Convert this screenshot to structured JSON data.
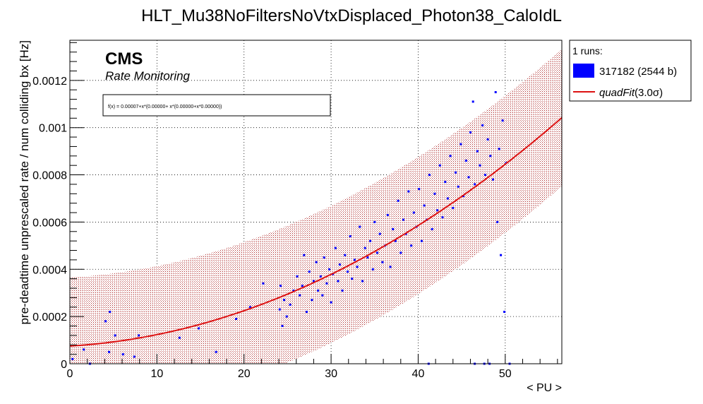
{
  "chart_data": {
    "type": "scatter",
    "title": "HLT_Mu38NoFiltersNoVtxDisplaced_Photon38_CaloIdL",
    "xlabel": "< PU >",
    "ylabel": "pre-deadtime unprescaled rate / num colliding bx [Hz]",
    "xlim": [
      0,
      56.5
    ],
    "ylim": [
      0,
      0.00137
    ],
    "x_ticks": [
      "0",
      "10",
      "20",
      "30",
      "40",
      "50"
    ],
    "y_ticks": [
      "0",
      "0.0002",
      "0.0004",
      "0.0006",
      "0.0008",
      "0.001",
      "0.0012"
    ],
    "grid": true,
    "cms_label": "CMS",
    "cms_sublabel": "Rate Monitoring",
    "fit_formula": "f(x) = 0.00007+x*(0.00000+ x*(0.00000+x*0.00000))",
    "legend": {
      "header": "1 runs:",
      "run_label": "317182 (2544 b)",
      "fit_label": "quadFit",
      "fit_sigma": "(3.0σ)",
      "placement": "right"
    },
    "fit": {
      "a": 7.5e-05,
      "b": 2.2e-06,
      "c": 2.64e-07,
      "band_halfwidth": 0.00029
    },
    "series": [
      {
        "name": "317182 (2544 b)",
        "color": "#0000ff",
        "points": [
          [
            0.3,
            2e-05
          ],
          [
            1.6,
            6e-05
          ],
          [
            2.3,
            0.0
          ],
          [
            4.1,
            0.00018
          ],
          [
            4.6,
            0.00022
          ],
          [
            4.5,
            5e-05
          ],
          [
            5.2,
            0.00012
          ],
          [
            6.1,
            4e-05
          ],
          [
            7.4,
            3e-05
          ],
          [
            7.9,
            0.00012
          ],
          [
            12.6,
            0.00011
          ],
          [
            14.8,
            0.00015
          ],
          [
            16.8,
            5e-05
          ],
          [
            19.1,
            0.00019
          ],
          [
            20.7,
            0.00024
          ],
          [
            22.2,
            0.00034
          ],
          [
            24.1,
            0.00023
          ],
          [
            24.2,
            0.00033
          ],
          [
            24.4,
            0.00016
          ],
          [
            24.6,
            0.00027
          ],
          [
            24.9,
            0.0002
          ],
          [
            25.3,
            0.00025
          ],
          [
            25.7,
            0.00031
          ],
          [
            26.1,
            0.00037
          ],
          [
            26.4,
            0.00029
          ],
          [
            26.7,
            0.00033
          ],
          [
            26.9,
            0.00046
          ],
          [
            27.2,
            0.00022
          ],
          [
            27.5,
            0.00039
          ],
          [
            27.8,
            0.00027
          ],
          [
            28.0,
            0.00035
          ],
          [
            28.3,
            0.00043
          ],
          [
            28.5,
            0.00031
          ],
          [
            28.8,
            0.00037
          ],
          [
            29.0,
            0.00029
          ],
          [
            29.2,
            0.00045
          ],
          [
            29.5,
            0.00034
          ],
          [
            29.8,
            0.0004
          ],
          [
            30.0,
            0.00026
          ],
          [
            30.2,
            0.00038
          ],
          [
            30.5,
            0.00049
          ],
          [
            30.8,
            0.00035
          ],
          [
            31.0,
            0.00042
          ],
          [
            31.3,
            0.00031
          ],
          [
            31.6,
            0.00046
          ],
          [
            31.9,
            0.00039
          ],
          [
            32.2,
            0.00054
          ],
          [
            32.4,
            0.00036
          ],
          [
            32.7,
            0.00044
          ],
          [
            33.0,
            0.00041
          ],
          [
            33.3,
            0.00058
          ],
          [
            33.6,
            0.00035
          ],
          [
            33.9,
            0.00049
          ],
          [
            34.2,
            0.00045
          ],
          [
            34.5,
            0.00052
          ],
          [
            34.8,
            0.0004
          ],
          [
            35.0,
            0.0006
          ],
          [
            35.3,
            0.00047
          ],
          [
            35.6,
            0.00055
          ],
          [
            35.9,
            0.00043
          ],
          [
            36.2,
            0.0005
          ],
          [
            36.5,
            0.00063
          ],
          [
            36.8,
            0.00041
          ],
          [
            37.1,
            0.00057
          ],
          [
            37.4,
            0.00052
          ],
          [
            37.7,
            0.00069
          ],
          [
            38.0,
            0.00047
          ],
          [
            38.3,
            0.00061
          ],
          [
            38.6,
            0.00055
          ],
          [
            38.9,
            0.00073
          ],
          [
            39.2,
            0.0005
          ],
          [
            39.5,
            0.00064
          ],
          [
            39.8,
            0.00058
          ],
          [
            40.1,
            0.00074
          ],
          [
            40.4,
            0.00052
          ],
          [
            40.7,
            0.00067
          ],
          [
            41.0,
            0.00061
          ],
          [
            41.3,
            0.0008
          ],
          [
            41.6,
            0.00057
          ],
          [
            41.9,
            0.00072
          ],
          [
            42.2,
            0.00065
          ],
          [
            42.5,
            0.00084
          ],
          [
            42.8,
            0.00062
          ],
          [
            43.1,
            0.00077
          ],
          [
            43.4,
            0.0007
          ],
          [
            43.7,
            0.00088
          ],
          [
            44.0,
            0.00066
          ],
          [
            44.3,
            0.00081
          ],
          [
            44.6,
            0.00075
          ],
          [
            44.9,
            0.00093
          ],
          [
            45.2,
            0.00071
          ],
          [
            45.5,
            0.00086
          ],
          [
            45.8,
            0.00079
          ],
          [
            46.0,
            0.00098
          ],
          [
            46.3,
            0.00111
          ],
          [
            46.5,
            0.00076
          ],
          [
            46.8,
            0.0009
          ],
          [
            47.1,
            0.00084
          ],
          [
            47.4,
            0.00101
          ],
          [
            47.7,
            0.0008
          ],
          [
            48.0,
            0.00095
          ],
          [
            48.3,
            0.00088
          ],
          [
            48.6,
            0.00078
          ],
          [
            48.9,
            0.00115
          ],
          [
            49.1,
            0.0006
          ],
          [
            49.3,
            0.00091
          ],
          [
            49.5,
            0.00046
          ],
          [
            49.7,
            0.00103
          ],
          [
            49.9,
            0.00022
          ],
          [
            50.1,
            0.00085
          ],
          [
            48.2,
            0.0
          ],
          [
            46.5,
            0.0
          ],
          [
            41.2,
            0.0
          ],
          [
            47.6,
            0.0
          ],
          [
            50.5,
            0.0
          ]
        ]
      }
    ]
  }
}
